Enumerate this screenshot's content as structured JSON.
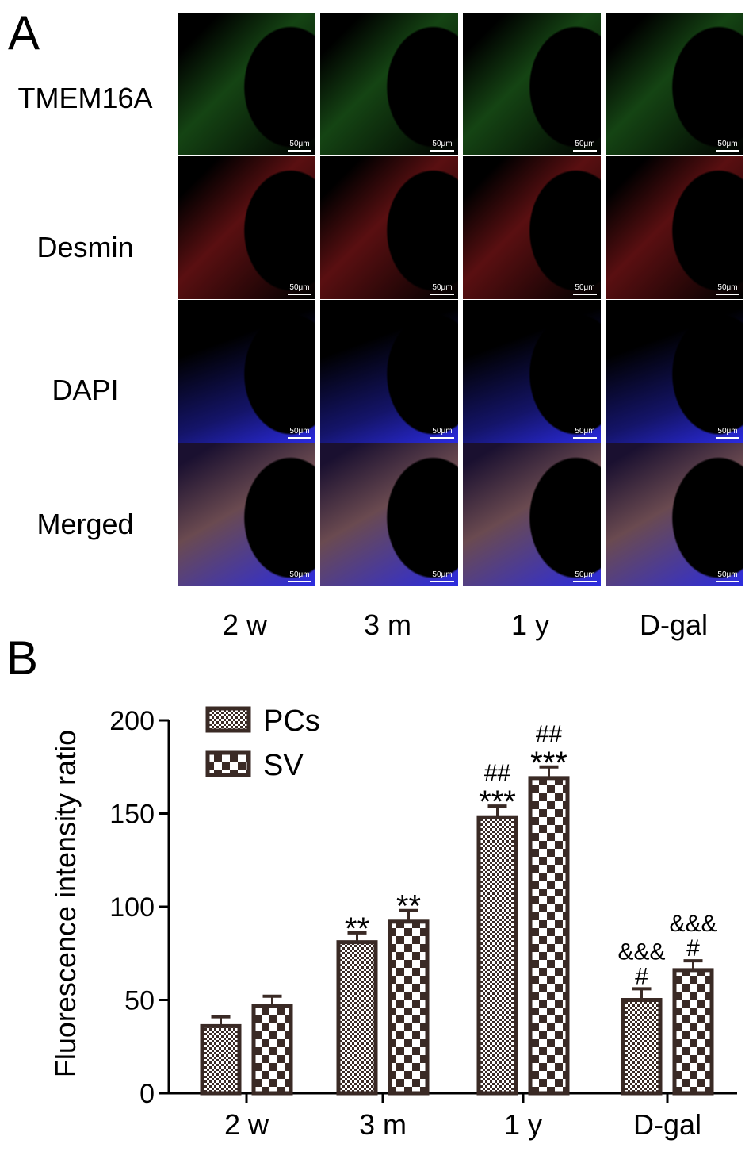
{
  "panels": {
    "a": "A",
    "b": "B"
  },
  "micrograph": {
    "rows": [
      {
        "label": "TMEM16A",
        "channel": "green"
      },
      {
        "label": "Desmin",
        "channel": "red"
      },
      {
        "label": "DAPI",
        "channel": "blue"
      },
      {
        "label": "Merged",
        "channel": "merged"
      }
    ],
    "columns": [
      "2 w",
      "3 m",
      "1 y",
      "D-gal"
    ],
    "scale_bar": "50μm",
    "colors": {
      "green": "#3ecc3a",
      "red": "#e0262b",
      "blue": "#2b2be0",
      "divider": "#ffffff"
    }
  },
  "chart_data": {
    "type": "bar",
    "title": "",
    "ylabel": "Fluorescence intensity ratio",
    "xlabel": "",
    "ylim": [
      0,
      200
    ],
    "yticks": [
      0,
      50,
      100,
      150,
      200
    ],
    "categories": [
      "2 w",
      "3 m",
      "1 y",
      "D-gal"
    ],
    "series": [
      {
        "name": "PCs",
        "pattern": "fine-check",
        "values": [
          36,
          81,
          148,
          50
        ],
        "errors": [
          5,
          5,
          6,
          6
        ]
      },
      {
        "name": "SV",
        "pattern": "coarse-check",
        "values": [
          47,
          92,
          169,
          66
        ],
        "errors": [
          5,
          6,
          6,
          5
        ]
      }
    ],
    "annotations": [
      {
        "category": "3 m",
        "series": "PCs",
        "lines": [
          "**"
        ]
      },
      {
        "category": "3 m",
        "series": "SV",
        "lines": [
          "**"
        ]
      },
      {
        "category": "1 y",
        "series": "PCs",
        "lines": [
          "##",
          "***"
        ]
      },
      {
        "category": "1 y",
        "series": "SV",
        "lines": [
          "##",
          "***"
        ]
      },
      {
        "category": "D-gal",
        "series": "PCs",
        "lines": [
          "&&&",
          "#"
        ]
      },
      {
        "category": "D-gal",
        "series": "SV",
        "lines": [
          "&&&",
          "#"
        ]
      }
    ],
    "legend_position": "top-left",
    "colors": {
      "bar_fill": "#3a2a25",
      "bar_light": "#ffffff"
    }
  }
}
